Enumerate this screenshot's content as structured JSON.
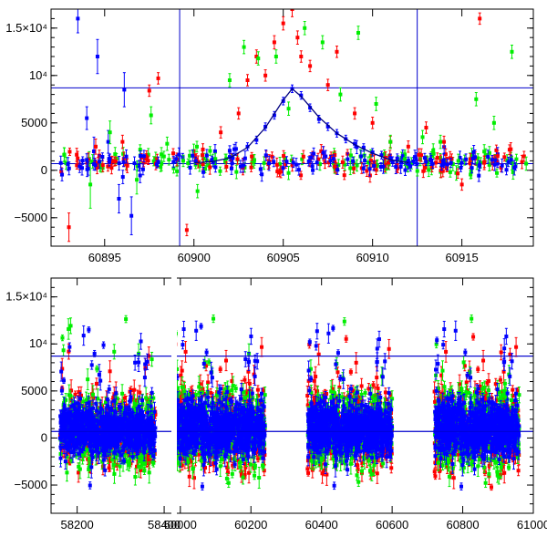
{
  "colors": {
    "blue": "#0000ff",
    "red": "#ff0000",
    "green": "#00ee00",
    "axis": "#000000",
    "ref_line": "#0000cc"
  },
  "chart_data": [
    {
      "type": "scatter",
      "name": "top-panel-zoom",
      "xlim": [
        60892,
        60919
      ],
      "ylim": [
        -8000,
        17000
      ],
      "x_ticks": [
        60895,
        60900,
        60905,
        60910,
        60915
      ],
      "x_tick_labels": [
        "60895",
        "60900",
        "60905",
        "60910",
        "60915"
      ],
      "y_ticks": [
        -5000,
        0,
        5000,
        10000,
        15000
      ],
      "y_tick_labels": [
        "−5000",
        "0",
        "5000",
        "10⁴",
        "1.5×10⁴"
      ],
      "hlines": [
        700,
        8700
      ],
      "vlines": [
        60899.2,
        60912.5
      ],
      "model_curve": {
        "series": "blue",
        "x": [
          60900,
          60901,
          60902,
          60903,
          60904,
          60905,
          60905.5,
          60906,
          60907,
          60908,
          60909,
          60910,
          60911,
          60912
        ],
        "y": [
          800,
          900,
          1300,
          2400,
          4500,
          7400,
          8600,
          7800,
          5600,
          3900,
          2700,
          1800,
          1100,
          800
        ]
      },
      "series": [
        {
          "name": "blue",
          "x": [
            60893.5,
            60894.0,
            60894.4,
            60894.6,
            60895.2,
            60895.8,
            60896.1,
            60896.5,
            60897.2,
            60898.0,
            60899.0,
            60900.1,
            60901.0,
            60902.0,
            60903.0,
            60903.5,
            60904.0,
            60904.5,
            60905.0,
            60905.5,
            60906.0,
            60906.5,
            60907.0,
            60907.5,
            60908.0,
            60908.5,
            60909.0,
            60909.5,
            60910.0,
            60910.5,
            60911.0,
            60912.0,
            60913.0,
            60914.0,
            60915.0,
            60916.0,
            60917.0,
            60918.0
          ],
          "y": [
            16000,
            5500,
            2000,
            12000,
            3000,
            -3000,
            8500,
            -4800,
            1500,
            900,
            1200,
            1000,
            1100,
            1400,
            2500,
            3200,
            4600,
            5800,
            7300,
            8600,
            7900,
            6600,
            5400,
            4600,
            3900,
            3300,
            2800,
            2400,
            1900,
            1600,
            1300,
            1000,
            900,
            700,
            800,
            600,
            700,
            400
          ],
          "err": [
            1500,
            1200,
            1500,
            1800,
            1200,
            1500,
            1800,
            2000,
            600,
            500,
            400,
            400,
            400,
            400,
            400,
            400,
            400,
            400,
            400,
            400,
            400,
            400,
            400,
            400,
            400,
            400,
            400,
            400,
            400,
            400,
            400,
            400,
            400,
            400,
            400,
            400,
            400,
            400
          ]
        },
        {
          "name": "red",
          "x": [
            60893.0,
            60894.5,
            60896.0,
            60897.5,
            60898.0,
            60899.6,
            60900.5,
            60901.5,
            60902.5,
            60903.0,
            60903.5,
            60904.0,
            60904.5,
            60905.0,
            60905.5,
            60905.8,
            60906.0,
            60906.5,
            60907.5,
            60908.0,
            60909.0,
            60910.0,
            60911.0,
            60912.0,
            60913.0,
            60914.0,
            60915.0,
            60916.0,
            60917.0
          ],
          "y": [
            -6000,
            2500,
            3000,
            8400,
            9700,
            -6300,
            2200,
            4000,
            6000,
            9500,
            12000,
            10000,
            13500,
            15500,
            17000,
            14000,
            12000,
            11000,
            9000,
            12500,
            6000,
            5000,
            3000,
            2500,
            4500,
            3000,
            -1500,
            16000,
            1500
          ],
          "err": [
            1500,
            800,
            700,
            600,
            600,
            600,
            600,
            600,
            600,
            600,
            700,
            600,
            700,
            700,
            800,
            700,
            600,
            600,
            600,
            600,
            600,
            600,
            600,
            600,
            600,
            600,
            600,
            600,
            600
          ]
        },
        {
          "name": "green",
          "x": [
            60894.2,
            60895.3,
            60896.8,
            60897.6,
            60898.5,
            60899.4,
            60900.2,
            60901.2,
            60902.0,
            60902.8,
            60903.6,
            60904.6,
            60905.3,
            60906.2,
            60907.2,
            60908.2,
            60909.2,
            60910.2,
            60911.0,
            60911.8,
            60912.8,
            60913.8,
            60914.8,
            60915.8,
            60916.8,
            60917.8,
            60918.6
          ],
          "y": [
            -1500,
            4000,
            -1000,
            5800,
            2800,
            1000,
            -2200,
            1200,
            9500,
            13000,
            11800,
            12000,
            6500,
            15000,
            13500,
            8000,
            14500,
            7000,
            3000,
            1200,
            3500,
            3000,
            1000,
            7500,
            5000,
            12500,
            700
          ],
          "err": [
            2500,
            1200,
            1500,
            900,
            700,
            600,
            700,
            600,
            700,
            700,
            700,
            700,
            700,
            700,
            700,
            700,
            700,
            700,
            700,
            700,
            700,
            700,
            700,
            700,
            700,
            700,
            700
          ]
        }
      ]
    },
    {
      "type": "scatter",
      "name": "bottom-panel-full",
      "xlim": [
        58140,
        61000
      ],
      "ylim": [
        -8000,
        17000
      ],
      "x_ticks": [
        58200,
        58400,
        60000,
        60200,
        60400,
        60600,
        60800,
        61000
      ],
      "x_tick_labels": [
        "58200",
        "58400",
        "60000",
        "60200",
        "60400",
        "60600",
        "60800",
        "61000"
      ],
      "y_ticks": [
        -5000,
        0,
        5000,
        10000,
        15000
      ],
      "y_tick_labels": [
        "−5000",
        "0",
        "5000",
        "10⁴",
        "1.5×10⁴"
      ],
      "hlines": [
        700,
        8700
      ],
      "axis_break_x": 58500,
      "clusters": [
        {
          "x_range": [
            58160,
            58380
          ],
          "y_mean": 800,
          "y_spread": 3000
        },
        {
          "x_range": [
            59980,
            60240
          ],
          "y_mean": 1000,
          "y_spread": 3500
        },
        {
          "x_range": [
            60360,
            60600
          ],
          "y_mean": 900,
          "y_spread": 3200
        },
        {
          "x_range": [
            60720,
            60960
          ],
          "y_mean": 1000,
          "y_spread": 3500
        }
      ]
    }
  ]
}
